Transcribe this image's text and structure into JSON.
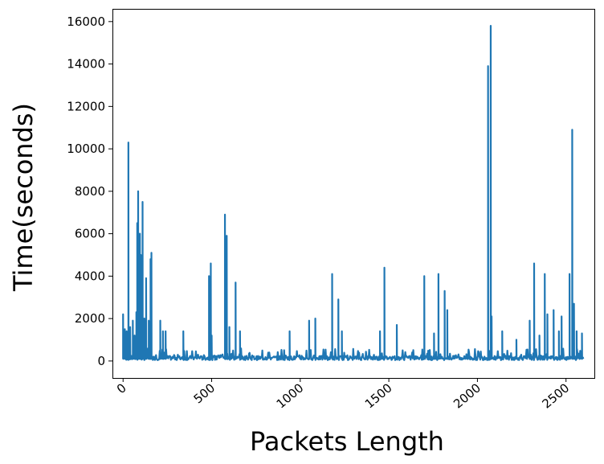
{
  "chart_data": {
    "type": "line",
    "title": "",
    "xlabel": "Packets Length",
    "ylabel": "Time(seconds)",
    "xlim": [
      -60,
      2660
    ],
    "ylim": [
      -800,
      16600
    ],
    "xticks": [
      0,
      500,
      1000,
      1500,
      2000,
      2500
    ],
    "xtick_labels": [
      "0",
      "500",
      "1000",
      "1500",
      "2000",
      "2500"
    ],
    "yticks": [
      0,
      2000,
      4000,
      6000,
      8000,
      10000,
      12000,
      14000,
      16000
    ],
    "ytick_labels": [
      "0",
      "2000",
      "4000",
      "6000",
      "8000",
      "10000",
      "12000",
      "14000",
      "16000"
    ],
    "grid": false,
    "series": [
      {
        "color": "#1f77b4",
        "baseline": 100,
        "x_range": [
          0,
          2600
        ],
        "peaks": [
          {
            "x": 0,
            "y": 2200
          },
          {
            "x": 10,
            "y": 1500
          },
          {
            "x": 20,
            "y": 1400
          },
          {
            "x": 30,
            "y": 10300
          },
          {
            "x": 40,
            "y": 1600
          },
          {
            "x": 55,
            "y": 1900
          },
          {
            "x": 65,
            "y": 1200
          },
          {
            "x": 75,
            "y": 2300
          },
          {
            "x": 80,
            "y": 6500
          },
          {
            "x": 85,
            "y": 8000
          },
          {
            "x": 95,
            "y": 6000
          },
          {
            "x": 100,
            "y": 5000
          },
          {
            "x": 110,
            "y": 7500
          },
          {
            "x": 120,
            "y": 2000
          },
          {
            "x": 130,
            "y": 3900
          },
          {
            "x": 145,
            "y": 1900
          },
          {
            "x": 155,
            "y": 4800
          },
          {
            "x": 160,
            "y": 5100
          },
          {
            "x": 210,
            "y": 1900
          },
          {
            "x": 225,
            "y": 1400
          },
          {
            "x": 240,
            "y": 1400
          },
          {
            "x": 340,
            "y": 1400
          },
          {
            "x": 485,
            "y": 4000
          },
          {
            "x": 495,
            "y": 4600
          },
          {
            "x": 500,
            "y": 1200
          },
          {
            "x": 575,
            "y": 6900
          },
          {
            "x": 585,
            "y": 5900
          },
          {
            "x": 600,
            "y": 1600
          },
          {
            "x": 635,
            "y": 3700
          },
          {
            "x": 660,
            "y": 1400
          },
          {
            "x": 940,
            "y": 1400
          },
          {
            "x": 1050,
            "y": 1900
          },
          {
            "x": 1085,
            "y": 2000
          },
          {
            "x": 1180,
            "y": 4100
          },
          {
            "x": 1215,
            "y": 2900
          },
          {
            "x": 1235,
            "y": 1400
          },
          {
            "x": 1450,
            "y": 1400
          },
          {
            "x": 1475,
            "y": 4400
          },
          {
            "x": 1545,
            "y": 1700
          },
          {
            "x": 1700,
            "y": 4000
          },
          {
            "x": 1755,
            "y": 1300
          },
          {
            "x": 1780,
            "y": 4100
          },
          {
            "x": 1815,
            "y": 3300
          },
          {
            "x": 1830,
            "y": 2400
          },
          {
            "x": 2060,
            "y": 13900
          },
          {
            "x": 2075,
            "y": 15800
          },
          {
            "x": 2080,
            "y": 2100
          },
          {
            "x": 2140,
            "y": 1400
          },
          {
            "x": 2220,
            "y": 1000
          },
          {
            "x": 2295,
            "y": 1900
          },
          {
            "x": 2320,
            "y": 4600
          },
          {
            "x": 2350,
            "y": 1200
          },
          {
            "x": 2380,
            "y": 4100
          },
          {
            "x": 2395,
            "y": 2200
          },
          {
            "x": 2430,
            "y": 2400
          },
          {
            "x": 2460,
            "y": 1400
          },
          {
            "x": 2475,
            "y": 2100
          },
          {
            "x": 2520,
            "y": 4100
          },
          {
            "x": 2535,
            "y": 10900
          },
          {
            "x": 2545,
            "y": 2700
          },
          {
            "x": 2560,
            "y": 1400
          },
          {
            "x": 2590,
            "y": 1300
          },
          {
            "x": 2600,
            "y": 400
          }
        ]
      }
    ]
  }
}
